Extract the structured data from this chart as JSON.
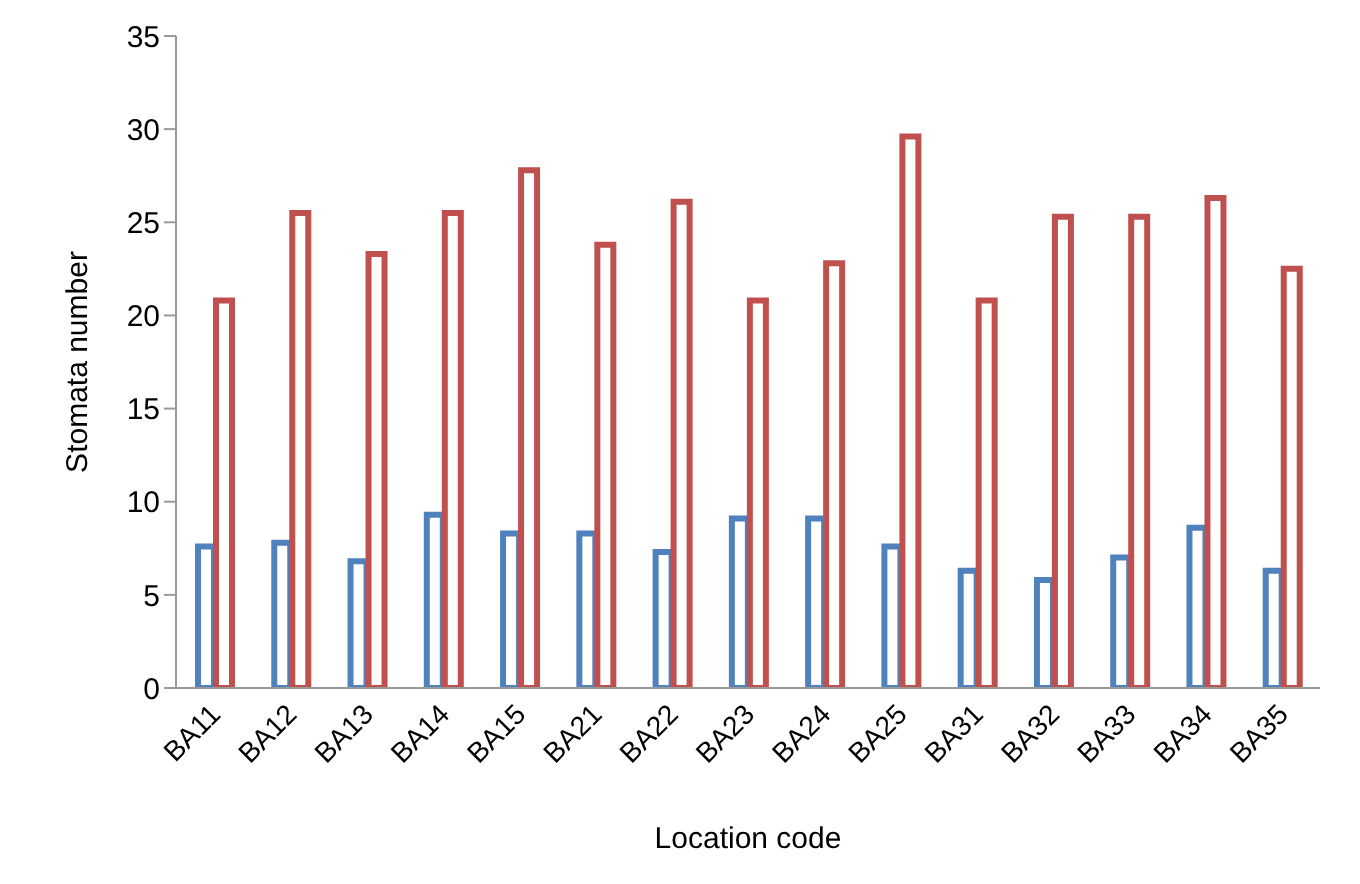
{
  "chart_data": {
    "type": "bar",
    "xlabel": "Location code",
    "ylabel": "Stomata number",
    "categories": [
      "BA11",
      "BA12",
      "BA13",
      "BA14",
      "BA15",
      "BA21",
      "BA22",
      "BA23",
      "BA24",
      "BA25",
      "BA31",
      "BA32",
      "BA33",
      "BA34",
      "BA35"
    ],
    "series": [
      {
        "color": "#4f81bd",
        "values": [
          7.6,
          7.8,
          6.8,
          9.3,
          8.3,
          8.3,
          7.3,
          9.1,
          9.1,
          7.6,
          6.3,
          5.8,
          7.0,
          8.6,
          6.3
        ]
      },
      {
        "color": "#c0504d",
        "values": [
          20.8,
          25.5,
          23.3,
          25.5,
          27.8,
          23.8,
          26.1,
          20.8,
          22.8,
          29.6,
          20.8,
          25.3,
          25.3,
          26.3,
          22.5
        ]
      }
    ],
    "ylim": [
      0,
      35
    ],
    "yticks": [
      0,
      5,
      10,
      15,
      20,
      25,
      30,
      35
    ],
    "grid": false,
    "legend": false
  }
}
